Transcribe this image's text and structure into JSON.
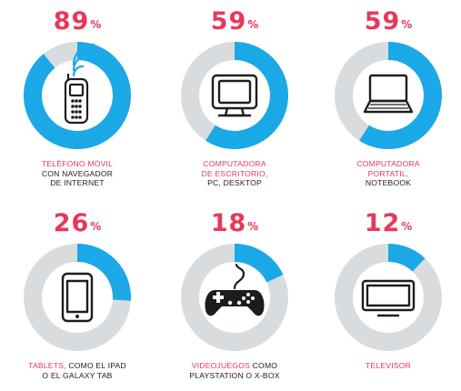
{
  "colors": {
    "accent": "#e8385a",
    "fill": "#1ba8e7",
    "track": "#d9dcdf",
    "text": "#1d1d1b"
  },
  "unit": "%",
  "chart_data": {
    "type": "pie",
    "items": [
      {
        "id": "mobile",
        "value": 89,
        "icon": "mobile-phone-icon",
        "caption": [
          {
            "text": "Teléfono móvil",
            "highlight": true
          },
          {
            "text": "con navegador",
            "highlight": false
          },
          {
            "text": "de internet",
            "highlight": false
          }
        ]
      },
      {
        "id": "desktop",
        "value": 59,
        "icon": "desktop-computer-icon",
        "caption": [
          {
            "text": "Computadora",
            "highlight": true
          },
          {
            "text": "de escritorio,",
            "highlight": true
          },
          {
            "text": "PC, Desktop",
            "highlight": false
          }
        ]
      },
      {
        "id": "laptop",
        "value": 59,
        "icon": "laptop-icon",
        "caption": [
          {
            "text": "Computadora",
            "highlight": true
          },
          {
            "text": "portatil,",
            "highlight": true
          },
          {
            "text": "Notebook",
            "highlight": false
          }
        ]
      },
      {
        "id": "tablet",
        "value": 26,
        "icon": "tablet-icon",
        "caption": [
          {
            "text": "Tablets, ",
            "highlight": true,
            "inline_next": "como el iPad"
          },
          {
            "text": "o el Galaxy Tab",
            "highlight": false
          }
        ]
      },
      {
        "id": "gaming",
        "value": 18,
        "icon": "gamepad-icon",
        "caption": [
          {
            "text": "Videojuegos ",
            "highlight": true,
            "inline_next": "como"
          },
          {
            "text": "Playstation o X-Box",
            "highlight": false
          }
        ]
      },
      {
        "id": "tv",
        "value": 12,
        "icon": "television-icon",
        "caption": [
          {
            "text": "Televisor",
            "highlight": true
          }
        ]
      }
    ]
  }
}
